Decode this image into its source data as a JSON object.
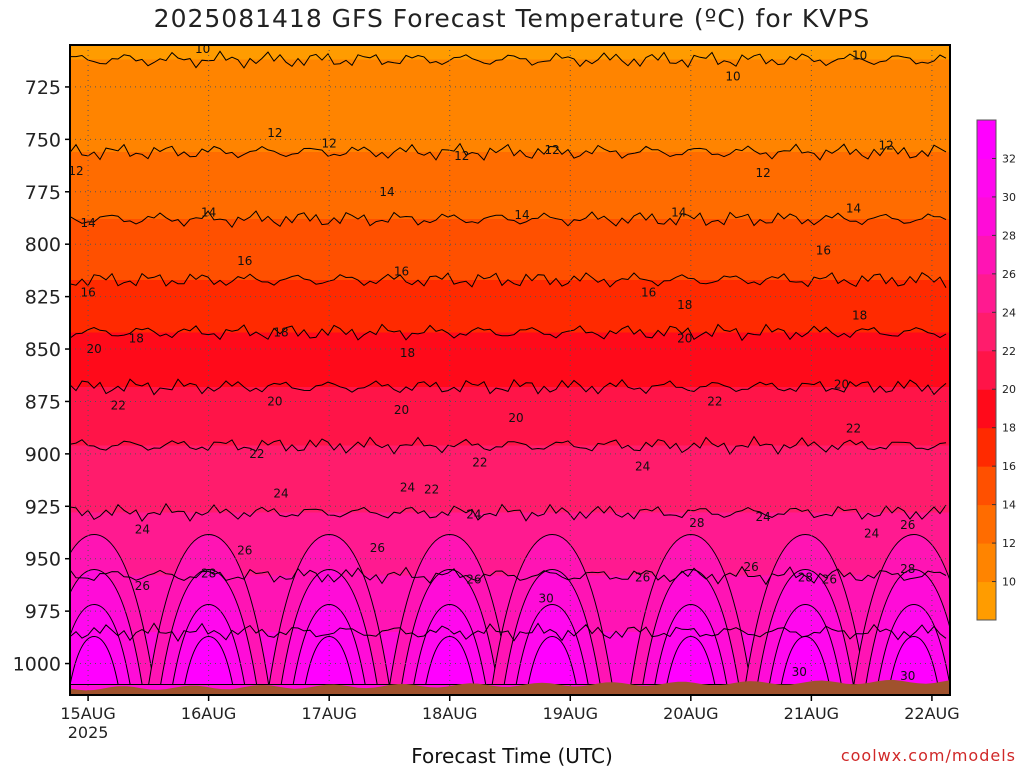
{
  "title": "2025081418 GFS Forecast Temperature (ºC) for KVPS",
  "xlabel": "Forecast Time (UTC)",
  "credit": "coolwx.com/models",
  "chart_data": {
    "type": "heatmap",
    "title": "2025081418 GFS Forecast Temperature (ºC) for KVPS",
    "xlabel": "Forecast Time (UTC)",
    "ylabel": "",
    "y_axis": "pressure (hPa), decreasing upward",
    "ylim": [
      1015,
      705
    ],
    "y_ticks": [
      725,
      750,
      775,
      800,
      825,
      850,
      875,
      900,
      925,
      950,
      975,
      1000
    ],
    "x_range_days": [
      14.85,
      22.15
    ],
    "x_ticks": [
      {
        "value": 15,
        "label": "15AUG",
        "sub": "2025"
      },
      {
        "value": 16,
        "label": "16AUG",
        "sub": ""
      },
      {
        "value": 17,
        "label": "17AUG",
        "sub": ""
      },
      {
        "value": 18,
        "label": "18AUG",
        "sub": ""
      },
      {
        "value": 19,
        "label": "19AUG",
        "sub": ""
      },
      {
        "value": 20,
        "label": "20AUG",
        "sub": ""
      },
      {
        "value": 21,
        "label": "21AUG",
        "sub": ""
      },
      {
        "value": 22,
        "label": "22AUG",
        "sub": ""
      }
    ],
    "grid": true,
    "surface_pressure": 1010,
    "contour_interval": 2,
    "colorbar": {
      "ticks": [
        10,
        12,
        14,
        16,
        18,
        20,
        22,
        24,
        26,
        28,
        30,
        32
      ],
      "range": [
        8,
        34
      ],
      "colors": [
        "#ff9c00",
        "#ff8400",
        "#ff6c00",
        "#ff5000",
        "#ff2a00",
        "#ff0a1a",
        "#ff1448",
        "#ff1c6c",
        "#ff1a90",
        "#ff14b4",
        "#ff0cd8",
        "#ff08ee",
        "#ff00ff"
      ]
    },
    "isotherm_levels": [
      {
        "temp": 10,
        "pressure": 712
      },
      {
        "temp": 12,
        "pressure": 756
      },
      {
        "temp": 14,
        "pressure": 788
      },
      {
        "temp": 16,
        "pressure": 817
      },
      {
        "temp": 18,
        "pressure": 842
      },
      {
        "temp": 20,
        "pressure": 868
      },
      {
        "temp": 22,
        "pressure": 896
      },
      {
        "temp": 24,
        "pressure": 928
      },
      {
        "temp": 26,
        "pressure": 958
      },
      {
        "temp": 28,
        "pressure": 985
      }
    ],
    "contour_labels": [
      {
        "text": "10",
        "x": 15.95,
        "p": 707
      },
      {
        "text": "10",
        "x": 20.35,
        "p": 720
      },
      {
        "text": "10",
        "x": 21.4,
        "p": 710
      },
      {
        "text": "12",
        "x": 14.9,
        "p": 765
      },
      {
        "text": "12",
        "x": 16.55,
        "p": 747
      },
      {
        "text": "12",
        "x": 17.0,
        "p": 752
      },
      {
        "text": "12",
        "x": 18.1,
        "p": 758
      },
      {
        "text": "12",
        "x": 18.85,
        "p": 755
      },
      {
        "text": "12",
        "x": 20.6,
        "p": 766
      },
      {
        "text": "12",
        "x": 21.62,
        "p": 753
      },
      {
        "text": "14",
        "x": 15.0,
        "p": 790
      },
      {
        "text": "14",
        "x": 16.0,
        "p": 785
      },
      {
        "text": "14",
        "x": 17.48,
        "p": 775
      },
      {
        "text": "14",
        "x": 18.6,
        "p": 786
      },
      {
        "text": "14",
        "x": 19.9,
        "p": 785
      },
      {
        "text": "14",
        "x": 21.35,
        "p": 783
      },
      {
        "text": "16",
        "x": 15.0,
        "p": 823
      },
      {
        "text": "16",
        "x": 16.3,
        "p": 808
      },
      {
        "text": "16",
        "x": 17.6,
        "p": 813
      },
      {
        "text": "16",
        "x": 19.65,
        "p": 823
      },
      {
        "text": "16",
        "x": 21.1,
        "p": 803
      },
      {
        "text": "18",
        "x": 15.4,
        "p": 845
      },
      {
        "text": "18",
        "x": 16.6,
        "p": 842
      },
      {
        "text": "18",
        "x": 17.65,
        "p": 852
      },
      {
        "text": "18",
        "x": 19.95,
        "p": 829
      },
      {
        "text": "18",
        "x": 21.4,
        "p": 834
      },
      {
        "text": "20",
        "x": 15.05,
        "p": 850
      },
      {
        "text": "20",
        "x": 16.55,
        "p": 875
      },
      {
        "text": "20",
        "x": 17.6,
        "p": 879
      },
      {
        "text": "20",
        "x": 18.55,
        "p": 883
      },
      {
        "text": "20",
        "x": 19.95,
        "p": 845
      },
      {
        "text": "20",
        "x": 21.25,
        "p": 867
      },
      {
        "text": "22",
        "x": 15.25,
        "p": 877
      },
      {
        "text": "22",
        "x": 16.4,
        "p": 900
      },
      {
        "text": "22",
        "x": 17.85,
        "p": 917
      },
      {
        "text": "22",
        "x": 18.25,
        "p": 904
      },
      {
        "text": "22",
        "x": 20.2,
        "p": 875
      },
      {
        "text": "22",
        "x": 21.35,
        "p": 888
      },
      {
        "text": "24",
        "x": 15.45,
        "p": 936
      },
      {
        "text": "24",
        "x": 16.6,
        "p": 919
      },
      {
        "text": "24",
        "x": 17.65,
        "p": 916
      },
      {
        "text": "24",
        "x": 18.2,
        "p": 929
      },
      {
        "text": "24",
        "x": 19.6,
        "p": 906
      },
      {
        "text": "24",
        "x": 20.6,
        "p": 930
      },
      {
        "text": "24",
        "x": 21.5,
        "p": 938
      },
      {
        "text": "26",
        "x": 15.45,
        "p": 963
      },
      {
        "text": "26",
        "x": 16.3,
        "p": 946
      },
      {
        "text": "26",
        "x": 17.4,
        "p": 945
      },
      {
        "text": "26",
        "x": 18.2,
        "p": 960
      },
      {
        "text": "26",
        "x": 19.6,
        "p": 959
      },
      {
        "text": "26",
        "x": 20.5,
        "p": 954
      },
      {
        "text": "26",
        "x": 21.15,
        "p": 960
      },
      {
        "text": "26",
        "x": 21.8,
        "p": 934
      },
      {
        "text": "28",
        "x": 16.0,
        "p": 957
      },
      {
        "text": "28",
        "x": 20.05,
        "p": 933
      },
      {
        "text": "28",
        "x": 20.95,
        "p": 959
      },
      {
        "text": "28",
        "x": 21.8,
        "p": 955
      },
      {
        "text": "30",
        "x": 18.8,
        "p": 969
      },
      {
        "text": "30",
        "x": 20.9,
        "p": 1004
      },
      {
        "text": "30",
        "x": 21.8,
        "p": 1006
      }
    ]
  }
}
